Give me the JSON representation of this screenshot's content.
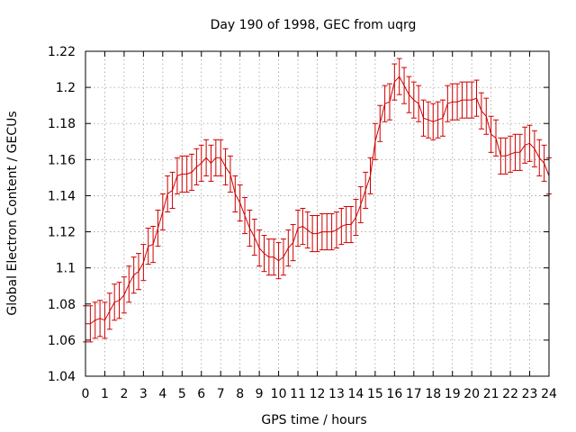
{
  "chart_data": {
    "type": "line",
    "title": "Day 190 of 1998, GEC from uqrg",
    "xlabel": "GPS time / hours",
    "ylabel": "Global Electron Content / GECUs",
    "xlim": [
      0,
      24
    ],
    "ylim": [
      1.04,
      1.22
    ],
    "xticks": [
      "0",
      "1",
      "2",
      "3",
      "4",
      "5",
      "6",
      "7",
      "8",
      "9",
      "10",
      "11",
      "12",
      "13",
      "14",
      "15",
      "16",
      "17",
      "18",
      "19",
      "20",
      "21",
      "22",
      "23",
      "24"
    ],
    "yticks": [
      "1.04",
      "1.06",
      "1.08",
      "1.1",
      "1.12",
      "1.14",
      "1.16",
      "1.18",
      "1.2",
      "1.22"
    ],
    "grid": true,
    "series": [
      {
        "color": "#cc0000",
        "x": [
          0.0,
          0.25,
          0.5,
          0.75,
          1.0,
          1.25,
          1.5,
          1.75,
          2.0,
          2.25,
          2.5,
          2.75,
          3.0,
          3.25,
          3.5,
          3.75,
          4.0,
          4.25,
          4.5,
          4.75,
          5.0,
          5.25,
          5.5,
          5.75,
          6.0,
          6.25,
          6.5,
          6.75,
          7.0,
          7.25,
          7.5,
          7.75,
          8.0,
          8.25,
          8.5,
          8.75,
          9.0,
          9.25,
          9.5,
          9.75,
          10.0,
          10.25,
          10.5,
          10.75,
          11.0,
          11.25,
          11.5,
          11.75,
          12.0,
          12.25,
          12.5,
          12.75,
          13.0,
          13.25,
          13.5,
          13.75,
          14.0,
          14.25,
          14.5,
          14.75,
          15.0,
          15.25,
          15.5,
          15.75,
          16.0,
          16.25,
          16.5,
          16.75,
          17.0,
          17.25,
          17.5,
          17.75,
          18.0,
          18.25,
          18.5,
          18.75,
          19.0,
          19.25,
          19.5,
          19.75,
          20.0,
          20.25,
          20.5,
          20.75,
          21.0,
          21.25,
          21.5,
          21.75,
          22.0,
          22.25,
          22.5,
          22.75,
          23.0,
          23.25,
          23.5,
          23.75,
          24.0
        ],
        "y": [
          1.069,
          1.069,
          1.071,
          1.072,
          1.071,
          1.076,
          1.081,
          1.082,
          1.085,
          1.091,
          1.096,
          1.098,
          1.103,
          1.112,
          1.113,
          1.122,
          1.131,
          1.141,
          1.143,
          1.151,
          1.152,
          1.152,
          1.153,
          1.156,
          1.158,
          1.161,
          1.158,
          1.161,
          1.161,
          1.156,
          1.152,
          1.141,
          1.136,
          1.129,
          1.122,
          1.117,
          1.111,
          1.108,
          1.106,
          1.106,
          1.104,
          1.106,
          1.111,
          1.114,
          1.122,
          1.123,
          1.121,
          1.119,
          1.119,
          1.12,
          1.12,
          1.12,
          1.121,
          1.123,
          1.124,
          1.124,
          1.128,
          1.135,
          1.143,
          1.151,
          1.17,
          1.18,
          1.191,
          1.192,
          1.203,
          1.206,
          1.201,
          1.196,
          1.193,
          1.191,
          1.183,
          1.182,
          1.181,
          1.182,
          1.183,
          1.191,
          1.192,
          1.192,
          1.193,
          1.193,
          1.193,
          1.194,
          1.187,
          1.184,
          1.174,
          1.172,
          1.162,
          1.162,
          1.163,
          1.164,
          1.164,
          1.168,
          1.169,
          1.166,
          1.161,
          1.158,
          1.151
        ],
        "err": [
          0.01,
          0.01,
          0.01,
          0.01,
          0.01,
          0.01,
          0.01,
          0.01,
          0.01,
          0.01,
          0.01,
          0.01,
          0.01,
          0.01,
          0.01,
          0.01,
          0.01,
          0.01,
          0.01,
          0.01,
          0.01,
          0.01,
          0.01,
          0.01,
          0.01,
          0.01,
          0.01,
          0.01,
          0.01,
          0.01,
          0.01,
          0.01,
          0.01,
          0.01,
          0.01,
          0.01,
          0.01,
          0.01,
          0.01,
          0.01,
          0.01,
          0.01,
          0.01,
          0.01,
          0.01,
          0.01,
          0.01,
          0.01,
          0.01,
          0.01,
          0.01,
          0.01,
          0.01,
          0.01,
          0.01,
          0.01,
          0.01,
          0.01,
          0.01,
          0.01,
          0.01,
          0.01,
          0.01,
          0.01,
          0.01,
          0.01,
          0.01,
          0.01,
          0.01,
          0.01,
          0.01,
          0.01,
          0.01,
          0.01,
          0.01,
          0.01,
          0.01,
          0.01,
          0.01,
          0.01,
          0.01,
          0.01,
          0.01,
          0.01,
          0.01,
          0.01,
          0.01,
          0.01,
          0.01,
          0.01,
          0.01,
          0.01,
          0.01,
          0.01,
          0.01,
          0.01,
          0.01
        ]
      }
    ]
  }
}
